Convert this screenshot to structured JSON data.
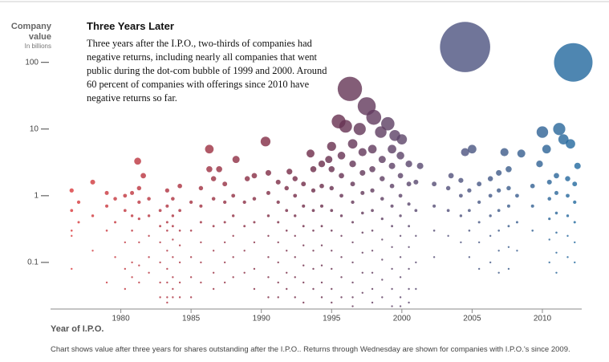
{
  "chart_data": {
    "type": "scatter",
    "title": "Three Years Later",
    "description": "Three years after the I.P.O., two-thirds of companies had negative returns, including nearly all companies that went public during the dot-com bubble of 1999 and 2000. Around 60 percent of companies with offerings since 2010 have negative returns so far.",
    "y_label": "Company value",
    "y_label_sub": "In billions",
    "x_label": "Year of I.P.O.",
    "note": "Chart shows value after three years for shares outstanding after the I.P.O.. Returns through Wednesday are shown for companies with I.P.O.'s since 2009.",
    "y_scale": "log",
    "xlim": [
      1975,
      2012.8
    ],
    "ylim": [
      0.02,
      750
    ],
    "xticks": [
      1980,
      1985,
      1990,
      1995,
      2000,
      2005,
      2010
    ],
    "yticks": [
      0.1,
      1,
      10,
      100
    ],
    "colors": [
      "#e23b3b",
      "#a8303f",
      "#6a2a48",
      "#52507a",
      "#1f6aa0"
    ],
    "x": [
      2004.5,
      2012.2,
      1996.3,
      1997.5,
      1998,
      1996,
      1997,
      1998.5,
      1999,
      1995.5,
      1999.5,
      2000,
      2011.2,
      2010,
      2012,
      2011.5,
      1990.3,
      1986.3,
      2005,
      2004.5,
      2007.3,
      2008.5,
      1993.5,
      1981.2,
      1988.2,
      2010.3,
      1994.8,
      1981.6,
      1986.3,
      1987,
      1989,
      1992,
      2001.3,
      2012.5,
      2009.8,
      2003.5,
      1976.5,
      1976.5,
      1976.5,
      1976.5,
      1976.5,
      1977,
      1977,
      1978,
      1978,
      1978,
      1979,
      1979,
      1979,
      1979,
      1979.6,
      1979.6,
      1979.6,
      1980.3,
      1980.3,
      1980.3,
      1980.3,
      1980.3,
      1980.8,
      1980.8,
      1980.8,
      1980.8,
      1980.8,
      1981.3,
      1981.3,
      1981.3,
      1981.3,
      1981.3,
      1981.3,
      1982,
      1982,
      1982,
      1982,
      1982,
      1982.8,
      1982.8,
      1982.8,
      1982.8,
      1982.8,
      1982.8,
      1983.3,
      1983.3,
      1983.3,
      1983.3,
      1983.3,
      1983.3,
      1983.3,
      1983.3,
      1983.3,
      1983.7,
      1983.7,
      1983.7,
      1983.7,
      1983.7,
      1983.7,
      1983.7,
      1983.7,
      1984.2,
      1984.2,
      1984.2,
      1984.2,
      1984.2,
      1984.2,
      1984.2,
      1985,
      1985,
      1985,
      1985,
      1985,
      1985.7,
      1985.7,
      1985.7,
      1985.7,
      1985.7,
      1985.7,
      1986.6,
      1986.6,
      1986.6,
      1986.6,
      1986.6,
      1986.6,
      1987.4,
      1987.4,
      1987.4,
      1987.4,
      1987.4,
      1987.4,
      1988,
      1988,
      1988,
      1988,
      1988,
      1988.8,
      1988.8,
      1988.8,
      1988.8,
      1989.5,
      1989.5,
      1989.5,
      1989.5,
      1989.5,
      1989.5,
      1990.5,
      1990.5,
      1990.5,
      1990.5,
      1990.5,
      1990.5,
      1990.5,
      1991.2,
      1991.2,
      1991.2,
      1991.2,
      1991.2,
      1991.2,
      1991.2,
      1991.8,
      1991.8,
      1991.8,
      1991.8,
      1991.8,
      1991.8,
      1992.4,
      1992.4,
      1992.4,
      1992.4,
      1992.4,
      1992.4,
      1992.4,
      1993,
      1993,
      1993,
      1993,
      1993,
      1993,
      1993,
      1993.7,
      1993.7,
      1993.7,
      1993.7,
      1993.7,
      1993.7,
      1993.7,
      1994.3,
      1994.3,
      1994.3,
      1994.3,
      1994.3,
      1994.3,
      1994.3,
      1994.3,
      1995,
      1995,
      1995,
      1995,
      1995,
      1995,
      1995,
      1995,
      1995,
      1995.7,
      1995.7,
      1995.7,
      1995.7,
      1995.7,
      1995.7,
      1995.7,
      1995.7,
      1996.5,
      1996.5,
      1996.5,
      1996.5,
      1996.5,
      1996.5,
      1996.5,
      1996.5,
      1996.5,
      1996.5,
      1997.2,
      1997.2,
      1997.2,
      1997.2,
      1997.2,
      1997.2,
      1997.2,
      1997.2,
      1997.9,
      1997.9,
      1997.9,
      1997.9,
      1997.9,
      1997.9,
      1997.9,
      1997.9,
      1997.9,
      1998.6,
      1998.6,
      1998.6,
      1998.6,
      1998.6,
      1998.6,
      1998.6,
      1998.6,
      1999.3,
      1999.3,
      1999.3,
      1999.3,
      1999.3,
      1999.3,
      1999.3,
      1999.3,
      1999.3,
      1999.9,
      1999.9,
      1999.9,
      1999.9,
      1999.9,
      1999.9,
      1999.9,
      1999.9,
      1999.9,
      2000.5,
      2000.5,
      2000.5,
      2000.5,
      2000.5,
      2000.5,
      2000.5,
      2000.5,
      2001,
      2001,
      2001,
      2001,
      2001,
      2002.3,
      2002.3,
      2002.3,
      2002.3,
      2003.3,
      2003.3,
      2003.3,
      2004.2,
      2004.2,
      2004.2,
      2004.2,
      2004.8,
      2004.8,
      2004.8,
      2004.8,
      2005.5,
      2005.5,
      2005.5,
      2005.5,
      2005.5,
      2006.3,
      2006.3,
      2006.3,
      2006.3,
      2006.3,
      2006.9,
      2006.9,
      2006.9,
      2006.9,
      2006.9,
      2006.9,
      2007.6,
      2007.6,
      2007.6,
      2007.6,
      2007.6,
      2007.6,
      2008.2,
      2008.2,
      2008.2,
      2009.3,
      2009.3,
      2009.3,
      2010.5,
      2010.5,
      2010.5,
      2010.5,
      2010.5,
      2011,
      2011,
      2011,
      2011,
      2011,
      2011,
      2011.8,
      2011.8,
      2011.8,
      2011.8,
      2011.8,
      2012.3,
      2012.3,
      2012.3,
      2012.3,
      2012.3
    ],
    "values": [
      170,
      100,
      40,
      22,
      15,
      11,
      10,
      9,
      12,
      13,
      8,
      7,
      10,
      9,
      6,
      7,
      6.5,
      5,
      5,
      4.5,
      4.5,
      4.3,
      4.3,
      3.3,
      3.5,
      5,
      3.5,
      2,
      2.5,
      2.5,
      1.8,
      2.3,
      2.8,
      2.8,
      3,
      2,
      1.2,
      0.6,
      0.25,
      0.08,
      0.3,
      0.8,
      0.4,
      1.6,
      0.5,
      0.15,
      1.1,
      0.7,
      0.3,
      0.05,
      0.9,
      0.4,
      0.12,
      1.0,
      0.6,
      0.2,
      0.08,
      0.04,
      1.1,
      0.5,
      0.3,
      0.1,
      0.06,
      1.3,
      0.8,
      0.45,
      0.2,
      0.09,
      0.05,
      0.9,
      0.5,
      0.25,
      0.12,
      0.07,
      0.6,
      0.35,
      0.2,
      0.1,
      0.05,
      0.03,
      1.2,
      0.7,
      0.4,
      0.3,
      0.15,
      0.08,
      0.05,
      0.03,
      0.025,
      0.9,
      0.5,
      0.35,
      0.22,
      0.12,
      0.06,
      0.04,
      0.03,
      1.4,
      0.6,
      0.3,
      0.18,
      0.1,
      0.05,
      0.03,
      0.8,
      0.3,
      0.12,
      0.06,
      0.03,
      1.3,
      0.7,
      0.4,
      0.2,
      0.1,
      0.05,
      1.8,
      0.9,
      0.35,
      0.15,
      0.07,
      0.04,
      1.5,
      0.8,
      0.4,
      0.2,
      0.1,
      0.05,
      1.0,
      0.5,
      0.25,
      0.12,
      0.06,
      0.8,
      0.35,
      0.15,
      0.07,
      2.0,
      0.9,
      0.4,
      0.2,
      0.08,
      0.04,
      2.2,
      1.1,
      0.5,
      0.25,
      0.12,
      0.06,
      0.03,
      1.6,
      0.8,
      0.4,
      0.2,
      0.1,
      0.05,
      0.03,
      1.3,
      0.6,
      0.3,
      0.15,
      0.07,
      0.04,
      1.8,
      1.0,
      0.5,
      0.25,
      0.12,
      0.06,
      0.03,
      1.5,
      0.7,
      0.35,
      0.18,
      0.09,
      0.05,
      0.025,
      2.5,
      1.2,
      0.6,
      0.3,
      0.15,
      0.08,
      0.04,
      3.0,
      1.4,
      0.7,
      0.35,
      0.18,
      0.09,
      0.05,
      0.03,
      5.5,
      2.5,
      1.3,
      0.6,
      0.3,
      0.15,
      0.08,
      0.04,
      0.025,
      4,
      2,
      1,
      0.5,
      0.25,
      0.12,
      0.06,
      0.03,
      6,
      3,
      1.5,
      0.8,
      0.4,
      0.2,
      0.1,
      0.05,
      0.03,
      0.022,
      4.5,
      2.2,
      1.1,
      0.55,
      0.28,
      0.14,
      0.07,
      0.035,
      5,
      2.5,
      1.2,
      0.6,
      0.3,
      0.15,
      0.07,
      0.04,
      0.025,
      3.5,
      1.8,
      0.9,
      0.45,
      0.22,
      0.11,
      0.055,
      0.03,
      5,
      2.8,
      1.4,
      0.7,
      0.35,
      0.17,
      0.08,
      0.04,
      0.022,
      4,
      2,
      1,
      0.5,
      0.25,
      0.12,
      0.06,
      0.03,
      0.022,
      3,
      1.5,
      0.75,
      0.35,
      0.17,
      0.08,
      0.04,
      0.025,
      1.6,
      0.6,
      0.25,
      0.1,
      0.04,
      1.5,
      0.7,
      0.3,
      0.12,
      1.3,
      0.6,
      0.25,
      1.7,
      1.0,
      0.5,
      0.2,
      1.2,
      0.6,
      0.3,
      0.12,
      1.5,
      0.8,
      0.4,
      0.2,
      0.08,
      1.8,
      1.0,
      0.5,
      0.25,
      0.1,
      2.2,
      1.2,
      0.6,
      0.3,
      0.15,
      0.07,
      2.5,
      1.3,
      0.7,
      0.35,
      0.17,
      0.08,
      1.0,
      0.4,
      0.15,
      1.4,
      0.7,
      0.3,
      1.6,
      0.9,
      0.45,
      0.22,
      0.1,
      2,
      1.1,
      0.55,
      0.28,
      0.14,
      0.07,
      1.8,
      1.0,
      0.5,
      0.25,
      0.12,
      1.5,
      0.8,
      0.4,
      0.2,
      0.1
    ]
  }
}
